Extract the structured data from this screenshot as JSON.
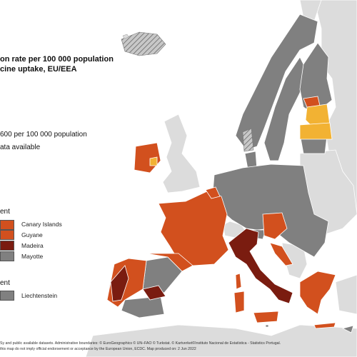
{
  "title": {
    "line1": "on rate per 100 000 population",
    "line2": "cine uptake, EU/EEA"
  },
  "legend": {
    "threshold_text": "600 per 100 000 population",
    "no_data_text": "ata available",
    "heading1": "ent",
    "heading2": "ent",
    "items_group1": [
      {
        "label": "Canary Islands",
        "color": "#d2501e"
      },
      {
        "label": "Guyane",
        "color": "#d2501e"
      },
      {
        "label": "Madeira",
        "color": "#7a1c10"
      },
      {
        "label": "Mayotte",
        "color": "#808080"
      }
    ],
    "items_group2": [
      {
        "label": "Liechtenstein",
        "color": "#808080"
      }
    ]
  },
  "colors": {
    "sea": "#ffffff",
    "non_eu": "#dcdcdc",
    "grey_data": "#808080",
    "orange_red": "#d2501e",
    "dark_red": "#7a1c10",
    "yellow": "#f2b233",
    "hatch": "#999999",
    "border": "#ffffff"
  },
  "footer": {
    "line1": "Sy and public available datasets. Administrative boundaries: © EuroGeographics © UN–FAO © Turkstat. © Kartverket©Instituto Nacional de Estatística - Statistics Portugal.",
    "line2": "this map do not imply official endorsement or acceptance by the European Union, ECDC. Map produced on: 2 Jun 2022"
  }
}
